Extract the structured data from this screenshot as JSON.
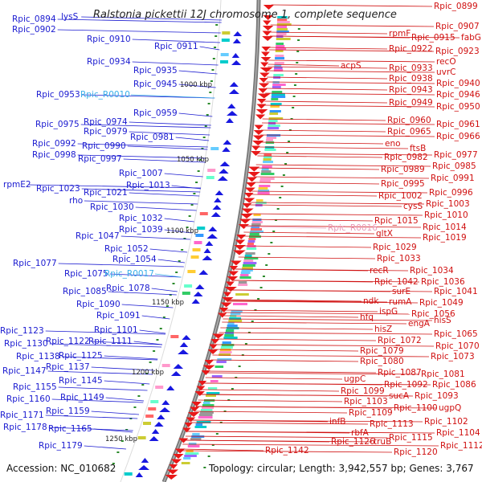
{
  "title": "Ralstonia pickettii 12J chromosome 1, complete sequence",
  "footer": {
    "accession": "Accession: NC_010682",
    "summary": "Topology: circular; Length: 3,942,557 bp; Genes: 3,767"
  },
  "colors": {
    "left_labels": "#1a1ad0",
    "right_labels": "#d01010",
    "rna_labels": "#38aee8",
    "backbone": "#808080"
  },
  "kbp_ticks": [
    "1000 kbp",
    "1050 kbp",
    "1100 kbp",
    "1150 kbp",
    "1200 kbp",
    "1250 kbp"
  ],
  "left_labels": [
    "lysS",
    "Rpic_0894",
    "Rpic_0902",
    "Rpic_0910",
    "Rpic_0911",
    "Rpic_0934",
    "Rpic_0935",
    "Rpic_0945",
    "Rpic_0953",
    "Rpic_R0010",
    "Rpic_0959",
    "Rpic_0974",
    "Rpic_0975",
    "Rpic_0979",
    "Rpic_0981",
    "Rpic_0992",
    "Rpic_0990",
    "Rpic_0998",
    "Rpic_0997",
    "Rpic_1007",
    "Rpic_1013",
    "rpmE2",
    "Rpic_1023",
    "Rpic_1021",
    "rho",
    "Rpic_1030",
    "Rpic_1032",
    "Rpic_1039",
    "Rpic_1047",
    "Rpic_1052",
    "Rpic_1054",
    "Rpic_1077",
    "Rpic_1075",
    "Rpic_R0017",
    "Rpic_1078",
    "Rpic_1085",
    "Rpic_1090",
    "Rpic_1091",
    "Rpic_1101",
    "Rpic_1123",
    "Rpic_1111",
    "Rpic_1122",
    "Rpic_1130",
    "Rpic_1125",
    "Rpic_1138",
    "Rpic_1137",
    "Rpic_1147",
    "Rpic_1145",
    "Rpic_1155",
    "Rpic_1149",
    "Rpic_1160",
    "Rpic_1159",
    "Rpic_1171",
    "Rpic_1165",
    "Rpic_1178",
    "Rpic_1179"
  ],
  "right_labels": [
    "Rpic_0899",
    "Rpic_0907",
    "rpmF",
    "Rpic_0915",
    "fabG",
    "Rpic_0922",
    "Rpic_0923",
    "acpS",
    "Rpic_0933",
    "recO",
    "uvrC",
    "Rpic_0938",
    "Rpic_0940",
    "Rpic_0943",
    "Rpic_0946",
    "Rpic_0949",
    "Rpic_0950",
    "Rpic_0960",
    "Rpic_0961",
    "Rpic_0965",
    "Rpic_0966",
    "eno",
    "ftsB",
    "Rpic_0977",
    "Rpic_0982",
    "Rpic_0985",
    "Rpic_0989",
    "Rpic_0991",
    "Rpic_0995",
    "Rpic_0996",
    "Rpic_1002",
    "Rpic_1003",
    "cysS",
    "Rpic_1010",
    "Rpic_1015",
    "Rpic_1014",
    "Rpic_R0016",
    "gltX",
    "Rpic_1019",
    "Rpic_1029",
    "Rpic_1033",
    "recR",
    "Rpic_1034",
    "Rpic_1042",
    "Rpic_1036",
    "surE",
    "Rpic_1041",
    "ndk",
    "rumA",
    "Rpic_1049",
    "ispG",
    "Rpic_1056",
    "hfq",
    "engA",
    "hisS",
    "hisZ",
    "Rpic_1065",
    "Rpic_1072",
    "Rpic_1070",
    "Rpic_1079",
    "Rpic_1073",
    "Rpic_1080",
    "Rpic_1087",
    "Rpic_1081",
    "ugpC",
    "Rpic_1092",
    "Rpic_1086",
    "Rpic_1099",
    "sucA",
    "Rpic_1093",
    "Rpic_1103",
    "Rpic_1109",
    "Rpic_1100",
    "ugpQ",
    "infB",
    "Rpic_1113",
    "Rpic_1102",
    "rbfA",
    "Rpic_1115",
    "Rpic_1104",
    "Rpic_1126",
    "truB",
    "Rpic_1112",
    "Rpic_1120",
    "Rpic_1142"
  ]
}
